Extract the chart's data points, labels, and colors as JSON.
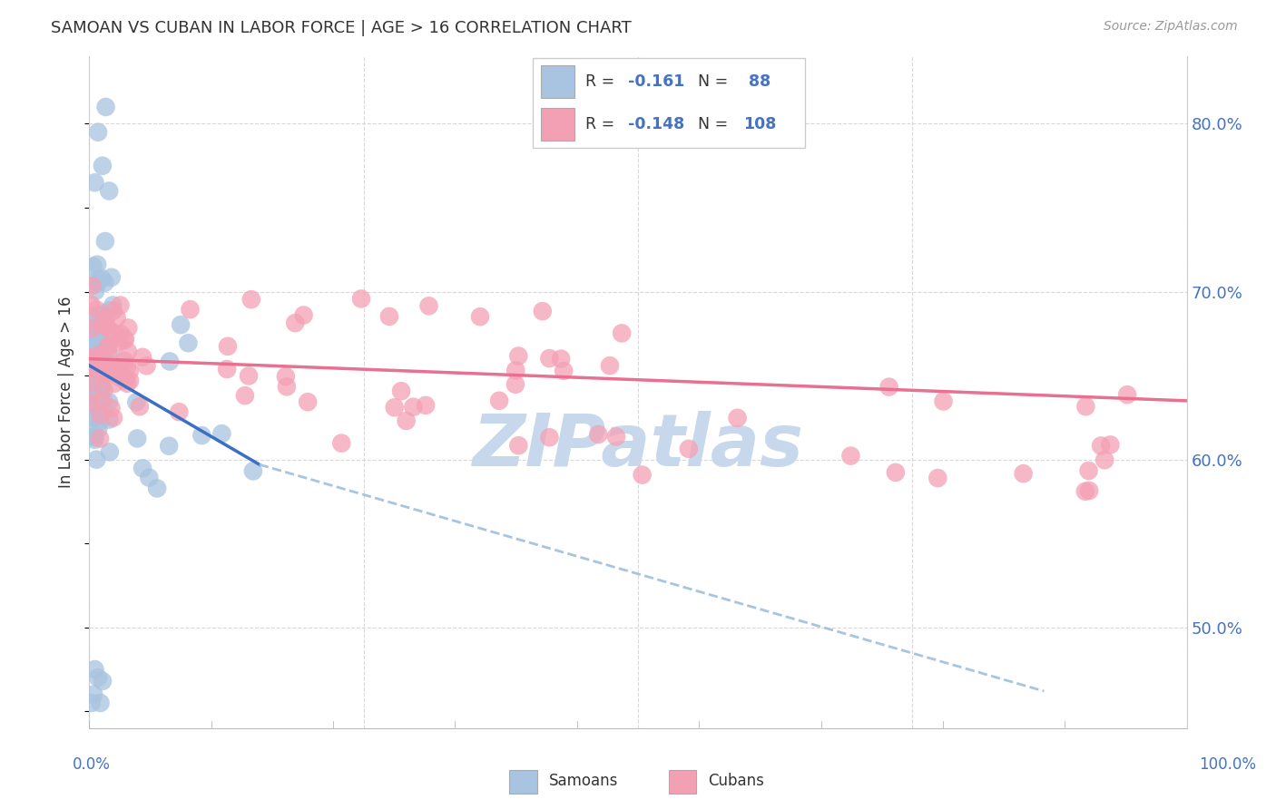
{
  "title": "SAMOAN VS CUBAN IN LABOR FORCE | AGE > 16 CORRELATION CHART",
  "source": "Source: ZipAtlas.com",
  "ylabel": "In Labor Force | Age > 16",
  "right_yticks": [
    0.5,
    0.6,
    0.7,
    0.8
  ],
  "right_yticklabels": [
    "50.0%",
    "60.0%",
    "70.0%",
    "80.0%"
  ],
  "samoan_color": "#a8c4e0",
  "cuban_color": "#f4a0b4",
  "samoan_line_color": "#3a6fc4",
  "cuban_line_color": "#e87090",
  "dashed_line_color": "#a8c4e0",
  "watermark": "ZIPatlas",
  "watermark_color": "#c8d8ec",
  "background_color": "#ffffff",
  "grid_color": "#d8d8d8",
  "xlim": [
    0.0,
    1.0
  ],
  "ylim": [
    0.44,
    0.84
  ],
  "blue_line_x": [
    0.0,
    0.155
  ],
  "blue_line_y": [
    0.656,
    0.597
  ],
  "dashed_line_x": [
    0.155,
    0.87
  ],
  "dashed_line_y": [
    0.597,
    0.462
  ],
  "pink_line_x": [
    0.0,
    1.0
  ],
  "pink_line_y": [
    0.66,
    0.635
  ],
  "legend_items": [
    {
      "color": "#a8c4e0",
      "r_text": "-0.161",
      "n_text": " 88"
    },
    {
      "color": "#f4a0b4",
      "r_text": "-0.148",
      "n_text": "108"
    }
  ],
  "text_color_dark": "#333333",
  "text_color_blue": "#4472c4",
  "text_color_source": "#999999"
}
